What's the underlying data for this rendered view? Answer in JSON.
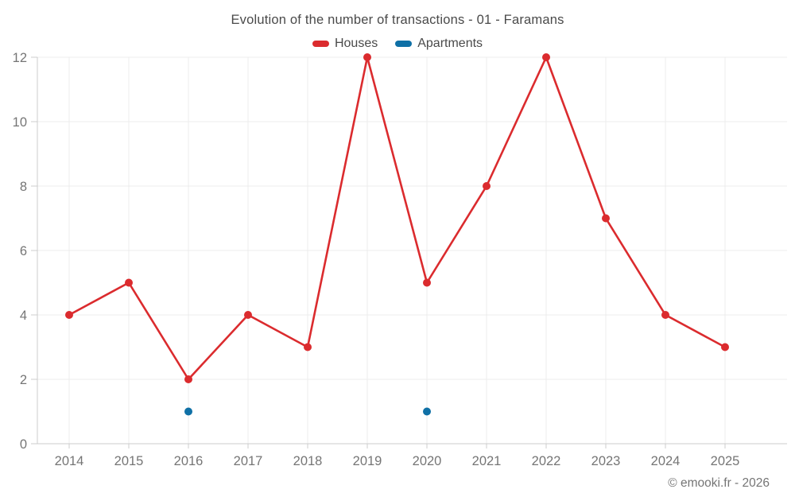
{
  "header": {
    "title": "Evolution of the number of transactions - 01 - Faramans"
  },
  "legend": {
    "items": [
      {
        "label": "Houses",
        "color": "#db2b2e"
      },
      {
        "label": "Apartments",
        "color": "#0f70a6"
      }
    ]
  },
  "footer": {
    "credit": "© emooki.fr - 2026"
  },
  "colors": {
    "houses": "#db2b2e",
    "apartments": "#0f70a6",
    "grid": "#ececec",
    "axis": "#cccccc",
    "tick_label": "#757575",
    "title_text": "#4a4a4a"
  },
  "chart_data": {
    "type": "line",
    "title": "Evolution of the number of transactions - 01 - Faramans",
    "x": [
      2014,
      2015,
      2016,
      2017,
      2018,
      2019,
      2020,
      2021,
      2022,
      2023,
      2024,
      2025
    ],
    "series": [
      {
        "name": "Houses",
        "color": "#db2b2e",
        "values": [
          4,
          5,
          2,
          4,
          3,
          12,
          5,
          8,
          12,
          7,
          4,
          3
        ],
        "style": "line-with-markers"
      },
      {
        "name": "Apartments",
        "color": "#0f70a6",
        "values": [
          null,
          null,
          1,
          null,
          null,
          null,
          1,
          null,
          null,
          null,
          null,
          null
        ],
        "style": "markers-only"
      }
    ],
    "xlabel": "",
    "ylabel": "",
    "ylim": [
      0,
      12
    ],
    "yticks": [
      0,
      2,
      4,
      6,
      8,
      10,
      12
    ],
    "grid": true,
    "legend_position": "top"
  }
}
